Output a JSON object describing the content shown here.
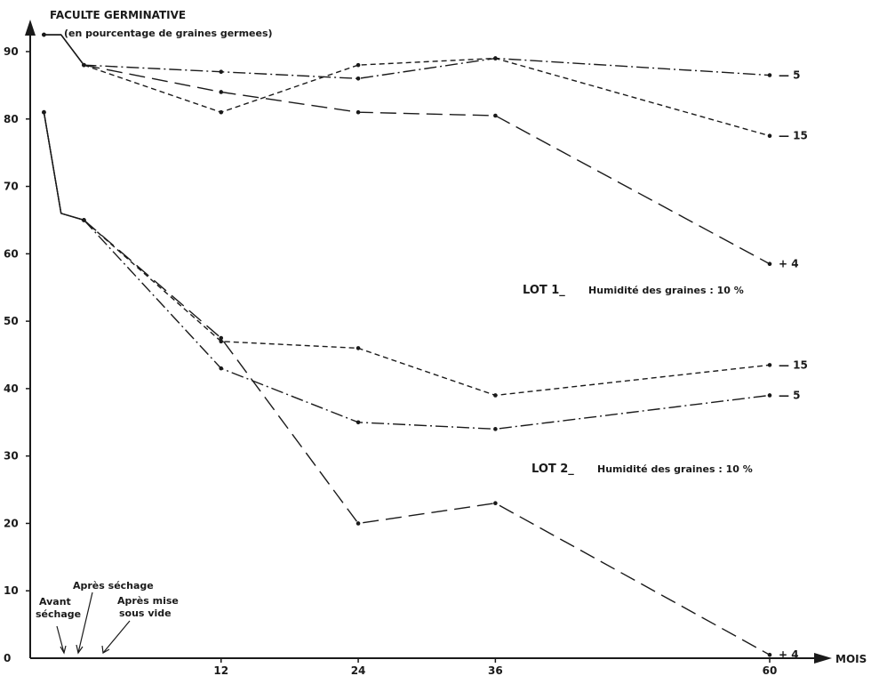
{
  "chart_data": {
    "type": "line",
    "title": "FACULTE GERMINATIVE",
    "subtitle": "(en pourcentage de graines germees)",
    "xlabel": "MOIS",
    "ylabel": "",
    "x_ticks": [
      "12",
      "24",
      "36",
      "60"
    ],
    "y_ticks": [
      "0",
      "10",
      "20",
      "30",
      "40",
      "50",
      "60",
      "70",
      "80",
      "90"
    ],
    "xlim": [
      -4.7,
      60
    ],
    "ylim": [
      0,
      90
    ],
    "phase_labels": {
      "avant_sechage": [
        "Avant",
        "séchage"
      ],
      "apres_sechage": "Après séchage",
      "apres_mise_sous_vide": [
        "Après mise",
        "sous vide"
      ]
    },
    "groups": [
      {
        "label": "LOT 1_",
        "note": "Humidité des graines : 10 %"
      },
      {
        "label": "LOT 2_",
        "note": "Humidité des graines : 10 %"
      }
    ],
    "series": [
      {
        "group": "LOT 1_",
        "end_label": "5",
        "style": "dashdot",
        "x": [
          -3.5,
          -2.0,
          0,
          12,
          24,
          36,
          60
        ],
        "y": [
          92.5,
          92.5,
          88,
          87,
          86,
          89,
          86.5
        ]
      },
      {
        "group": "LOT 1_",
        "end_label": "15",
        "style": "shortdash",
        "x": [
          -3.5,
          -2.0,
          0,
          12,
          24,
          36,
          60
        ],
        "y": [
          92.5,
          92.5,
          88,
          81,
          88,
          89,
          77.5
        ]
      },
      {
        "group": "LOT 1_",
        "end_label": "4",
        "style": "longdash",
        "x": [
          -3.5,
          -2.0,
          0,
          12,
          24,
          36,
          60
        ],
        "y": [
          92.5,
          92.5,
          88,
          84,
          81,
          80.5,
          58.5
        ]
      },
      {
        "group": "LOT 2_",
        "end_label": "15",
        "style": "shortdash",
        "x": [
          -3.5,
          -2.0,
          0,
          12,
          24,
          36,
          60
        ],
        "y": [
          81,
          66,
          65,
          47,
          46,
          39,
          43.5
        ]
      },
      {
        "group": "LOT 2_",
        "end_label": "5",
        "style": "dashdot",
        "x": [
          -3.5,
          -2.0,
          0,
          12,
          24,
          36,
          60
        ],
        "y": [
          81,
          66,
          65,
          43,
          35,
          34,
          39
        ]
      },
      {
        "group": "LOT 2_",
        "end_label": "4",
        "style": "longdash",
        "x": [
          -3.5,
          -2.0,
          0,
          12,
          24,
          36,
          60
        ],
        "y": [
          81,
          66,
          65,
          47.5,
          20,
          23,
          0.5
        ]
      }
    ],
    "colors": {
      "ink": "#1a1a1a",
      "background": "#ffffff"
    }
  }
}
